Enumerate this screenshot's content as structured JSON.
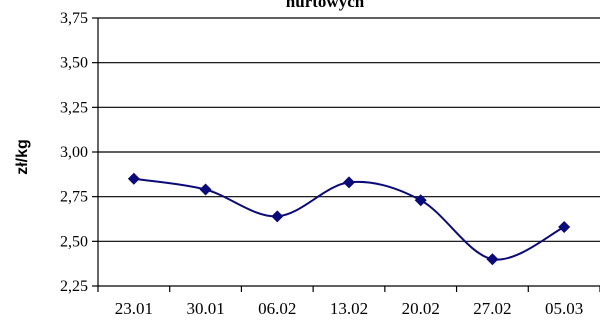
{
  "chart_data": {
    "type": "line",
    "title": "hurtowych",
    "xlabel": "",
    "ylabel": "zł/kg",
    "categories": [
      "23.01",
      "30.01",
      "06.02",
      "13.02",
      "20.02",
      "27.02",
      "05.03"
    ],
    "series": [
      {
        "values": [
          2.85,
          2.79,
          2.64,
          2.83,
          2.73,
          2.4,
          2.58
        ]
      }
    ],
    "yticks": [
      "2,25",
      "2,50",
      "2,75",
      "3,00",
      "3,25",
      "3,50",
      "3,75"
    ],
    "ylim": [
      2.25,
      3.75
    ],
    "grid": true,
    "legend": "none",
    "smooth": true,
    "marker": "diamond",
    "colors": {
      "series": "#0a0a78",
      "grid": "#000000"
    }
  }
}
